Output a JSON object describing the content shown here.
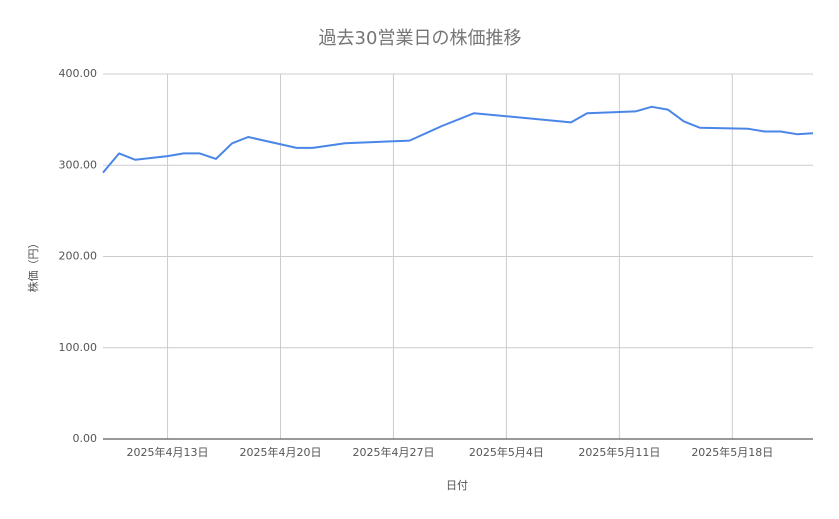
{
  "chart_data": {
    "type": "line",
    "title": "過去30営業日の株価推移",
    "x_label": "日付",
    "y_label": "株価（円）",
    "x": [
      "2025-04-09",
      "2025-04-10",
      "2025-04-11",
      "2025-04-13",
      "2025-04-14",
      "2025-04-15",
      "2025-04-16",
      "2025-04-17",
      "2025-04-18",
      "2025-04-21",
      "2025-04-22",
      "2025-04-24",
      "2025-04-28",
      "2025-04-30",
      "2025-05-02",
      "2025-05-08",
      "2025-05-09",
      "2025-05-12",
      "2025-05-13",
      "2025-05-14",
      "2025-05-15",
      "2025-05-16",
      "2025-05-19",
      "2025-05-20",
      "2025-05-21",
      "2025-05-22",
      "2025-05-23"
    ],
    "series": [
      {
        "name": "株価",
        "color": "#4a86e8",
        "values": [
          292,
          313,
          306,
          310,
          313,
          313,
          307,
          324,
          331,
          319,
          319,
          324,
          327,
          343,
          357,
          347,
          357,
          359,
          364,
          361,
          348,
          341,
          340,
          337,
          337,
          334,
          335
        ]
      }
    ],
    "xlim": [
      "2025-04-09",
      "2025-05-23"
    ],
    "xticks": [
      {
        "value": "2025-04-13",
        "label": "2025年4月13日"
      },
      {
        "value": "2025-04-20",
        "label": "2025年4月20日"
      },
      {
        "value": "2025-04-27",
        "label": "2025年4月27日"
      },
      {
        "value": "2025-05-04",
        "label": "2025年5月4日"
      },
      {
        "value": "2025-05-11",
        "label": "2025年5月11日"
      },
      {
        "value": "2025-05-18",
        "label": "2025年5月18日"
      }
    ],
    "ylim": [
      0,
      400
    ],
    "yticks": [
      {
        "value": 0,
        "label": "0.00"
      },
      {
        "value": 100,
        "label": "100.00"
      },
      {
        "value": 200,
        "label": "200.00"
      },
      {
        "value": 300,
        "label": "300.00"
      },
      {
        "value": 400,
        "label": "400.00"
      }
    ],
    "grid": true
  }
}
